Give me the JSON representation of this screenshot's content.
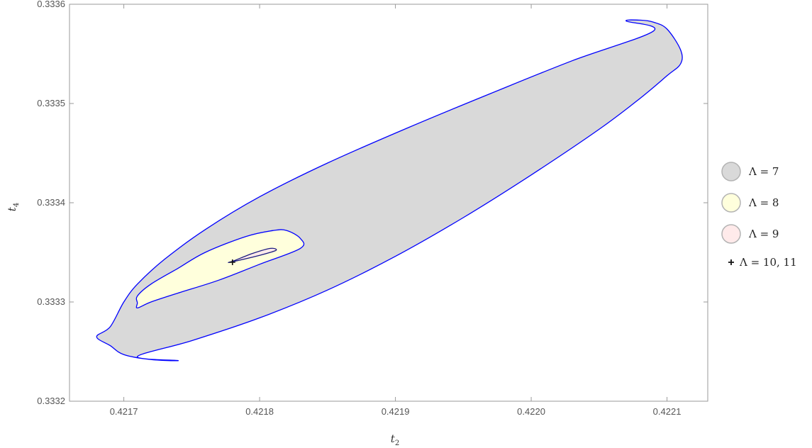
{
  "chart_data": {
    "type": "area",
    "title": "",
    "xlabel": "t",
    "xlabel_sub": "2",
    "ylabel": "t",
    "ylabel_sub": "4",
    "xlim": [
      0.42166,
      0.42213
    ],
    "ylim": [
      0.3332,
      0.3336
    ],
    "x_ticks": [
      0.4217,
      0.4218,
      0.4219,
      0.422,
      0.4221
    ],
    "x_tick_labels": [
      "0.4217",
      "0.4218",
      "0.4219",
      "0.4220",
      "0.4221"
    ],
    "y_ticks": [
      0.3332,
      0.3333,
      0.3334,
      0.3335,
      0.3336
    ],
    "y_tick_labels": [
      "0.3332",
      "0.3333",
      "0.3334",
      "0.3335",
      "0.3336"
    ],
    "grid": false,
    "legend_position": "right",
    "series": [
      {
        "name": "Λ = 7",
        "kind": "region",
        "fill": "#d9d9d9",
        "stroke": "#0000ff",
        "points": [
          [
            0.42169,
            0.333275
          ],
          [
            0.4217,
            0.3333
          ],
          [
            0.42171,
            0.333318
          ],
          [
            0.42173,
            0.333343
          ],
          [
            0.42176,
            0.333373
          ],
          [
            0.4218,
            0.333406
          ],
          [
            0.42185,
            0.33344
          ],
          [
            0.42191,
            0.333476
          ],
          [
            0.42197,
            0.33351
          ],
          [
            0.42203,
            0.333543
          ],
          [
            0.42209,
            0.333573
          ],
          [
            0.42207,
            0.333583
          ],
          [
            0.42208,
            0.333584
          ],
          [
            0.42209,
            0.333582
          ],
          [
            0.4221,
            0.333575
          ],
          [
            0.42211,
            0.333554
          ],
          [
            0.42211,
            0.33354
          ],
          [
            0.4221,
            0.333528
          ],
          [
            0.42208,
            0.333505
          ],
          [
            0.42205,
            0.333474
          ],
          [
            0.422,
            0.333428
          ],
          [
            0.42195,
            0.333385
          ],
          [
            0.4219,
            0.333346
          ],
          [
            0.42185,
            0.333312
          ],
          [
            0.4218,
            0.333284
          ],
          [
            0.42175,
            0.333261
          ],
          [
            0.42171,
            0.333245
          ],
          [
            0.42174,
            0.333241
          ],
          [
            0.42172,
            0.333242
          ],
          [
            0.4217,
            0.333247
          ],
          [
            0.42169,
            0.333256
          ],
          [
            0.42168,
            0.333265
          ]
        ]
      },
      {
        "name": "Λ = 8",
        "kind": "region",
        "fill": "#ffffdc",
        "stroke": "#0000ff",
        "points": [
          [
            0.42171,
            0.333294
          ],
          [
            0.42172,
            0.3333
          ],
          [
            0.42174,
            0.333309
          ],
          [
            0.42177,
            0.333322
          ],
          [
            0.4218,
            0.333338
          ],
          [
            0.42183,
            0.333354
          ],
          [
            0.42183,
            0.333364
          ],
          [
            0.42182,
            0.333372
          ],
          [
            0.42181,
            0.333372
          ],
          [
            0.42179,
            0.333366
          ],
          [
            0.42176,
            0.33335
          ],
          [
            0.42174,
            0.333334
          ],
          [
            0.42172,
            0.333318
          ],
          [
            0.42171,
            0.333306
          ],
          [
            0.42171,
            0.333299
          ]
        ]
      },
      {
        "name": "Λ = 9",
        "kind": "region",
        "fill": "#ffeaea",
        "stroke": "#1a1a80",
        "points": [
          [
            0.421778,
            0.33334
          ],
          [
            0.4218,
            0.333347
          ],
          [
            0.421812,
            0.333352
          ],
          [
            0.421808,
            0.333354
          ],
          [
            0.421795,
            0.333349
          ],
          [
            0.421782,
            0.333342
          ]
        ]
      },
      {
        "name": "Λ = 10, 11",
        "kind": "marker",
        "marker": "+",
        "points": [
          [
            0.42178,
            0.33334
          ]
        ]
      }
    ]
  }
}
